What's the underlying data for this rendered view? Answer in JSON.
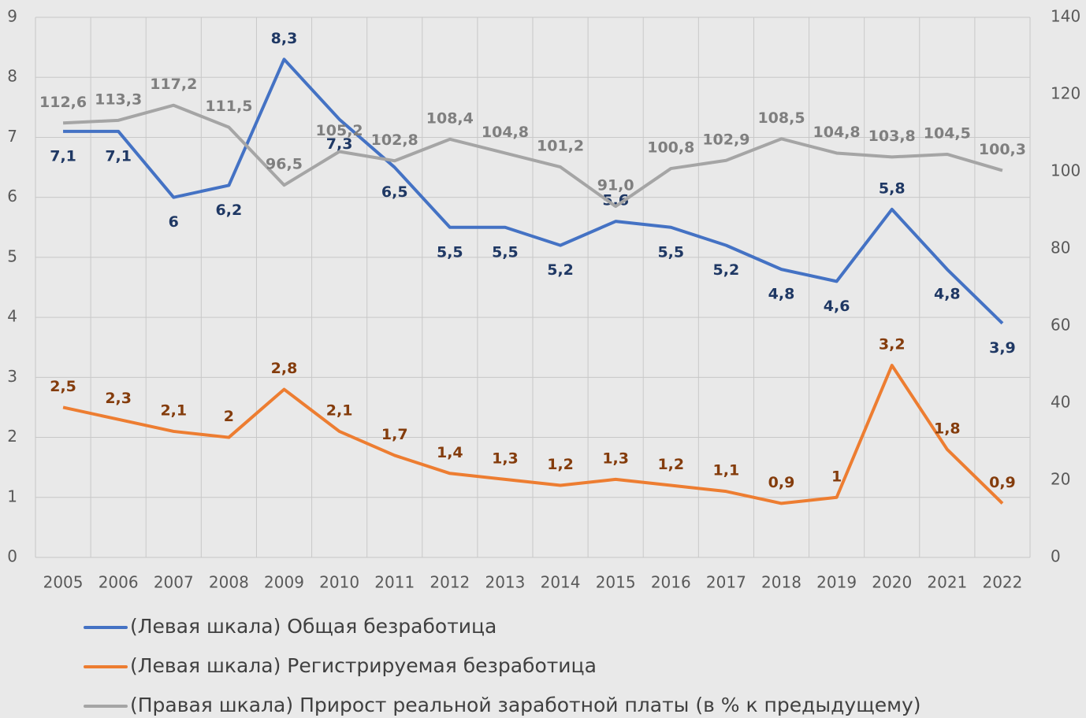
{
  "chart_data": {
    "type": "line",
    "categories": [
      "2005",
      "2006",
      "2007",
      "2008",
      "2009",
      "2010",
      "2011",
      "2012",
      "2013",
      "2014",
      "2015",
      "2016",
      "2017",
      "2018",
      "2019",
      "2020",
      "2021",
      "2022"
    ],
    "series": [
      {
        "name": "(Левая шкала) Общая безработица",
        "color": "#4472c4",
        "label_color": "#1f3864",
        "axis": "y",
        "values": [
          7.1,
          7.1,
          6,
          6.2,
          8.3,
          7.3,
          6.5,
          5.5,
          5.5,
          5.2,
          5.6,
          5.5,
          5.2,
          4.8,
          4.6,
          5.8,
          4.8,
          3.9
        ],
        "value_labels": [
          "7,1",
          "7,1",
          "6",
          "6,2",
          "8,3",
          "7,3",
          "6,5",
          "5,5",
          "5,5",
          "5,2",
          "5,6",
          "5,5",
          "5,2",
          "4,8",
          "4,6",
          "5,8",
          "4,8",
          "3,9"
        ]
      },
      {
        "name": "(Левая шкала) Регистрируемая безработица",
        "color": "#ed7d31",
        "label_color": "#843c0c",
        "axis": "y",
        "values": [
          2.5,
          2.3,
          2.1,
          2,
          2.8,
          2.1,
          1.7,
          1.4,
          1.3,
          1.2,
          1.3,
          1.2,
          1.1,
          0.9,
          1,
          3.2,
          1.8,
          0.9
        ],
        "value_labels": [
          "2,5",
          "2,3",
          "2,1",
          "2",
          "2,8",
          "2,1",
          "1,7",
          "1,4",
          "1,3",
          "1,2",
          "1,3",
          "1,2",
          "1,1",
          "0,9",
          "1",
          "3,2",
          "1,8",
          "0,9"
        ]
      },
      {
        "name": "(Правая шкала) Прирост реальной заработной платы (в % к предыдущему)",
        "color": "#a5a5a5",
        "label_color": "#7f7f7f",
        "axis": "y2",
        "values": [
          112.6,
          113.3,
          117.2,
          111.5,
          96.5,
          105.2,
          102.8,
          108.4,
          104.8,
          101.2,
          91.0,
          100.8,
          102.9,
          108.5,
          104.8,
          103.8,
          104.5,
          100.3
        ],
        "value_labels": [
          "112,6",
          "113,3",
          "117,2",
          "111,5",
          "96,5",
          "105,2",
          "102,8",
          "108,4",
          "104,8",
          "101,2",
          "91,0",
          "100,8",
          "102,9",
          "108,5",
          "104,8",
          "103,8",
          "104,5",
          "100,3"
        ]
      }
    ],
    "ylim": [
      0,
      9
    ],
    "yticks": [
      0,
      1,
      2,
      3,
      4,
      5,
      6,
      7,
      8,
      9
    ],
    "y2lim": [
      0,
      140
    ],
    "y2ticks": [
      0,
      20,
      40,
      60,
      80,
      100,
      120,
      140
    ],
    "grid": true
  }
}
